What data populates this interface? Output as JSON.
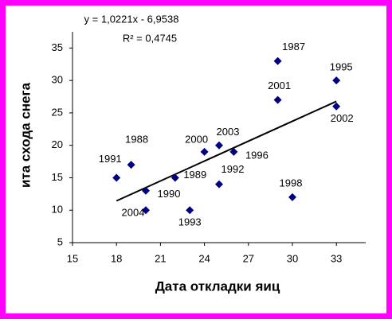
{
  "chart_data": {
    "type": "scatter",
    "equation": "y = 1,0221x - 6,9538",
    "r_squared": "R² = 0,4745",
    "xlabel": "Дата откладки яиц",
    "ylabel": "ита схода снега",
    "series": [
      {
        "color": "#000080",
        "x": [
          29,
          33,
          29,
          33,
          24,
          25,
          26,
          25,
          19,
          18,
          20,
          20,
          22,
          23,
          30
        ],
        "values": [
          33,
          30,
          27,
          26,
          19,
          20,
          19,
          14,
          17,
          15,
          13,
          10,
          15,
          10,
          12
        ],
        "point_labels": [
          "1987",
          "1995",
          "2001",
          "2002",
          "2000",
          "2003",
          "1996",
          "1992",
          "1988",
          "1991",
          "1990",
          "2004",
          "1989",
          "1993",
          "1998"
        ]
      }
    ],
    "trendline": {
      "color": "#000000",
      "x": [
        18,
        33
      ],
      "values": [
        11.44,
        26.78
      ]
    },
    "xlim": [
      15,
      35
    ],
    "xticks": [
      15,
      18,
      21,
      24,
      27,
      30,
      33
    ],
    "ylim": [
      5,
      37.5
    ],
    "yticks": [
      5,
      10,
      15,
      20,
      25,
      30,
      35
    ]
  }
}
